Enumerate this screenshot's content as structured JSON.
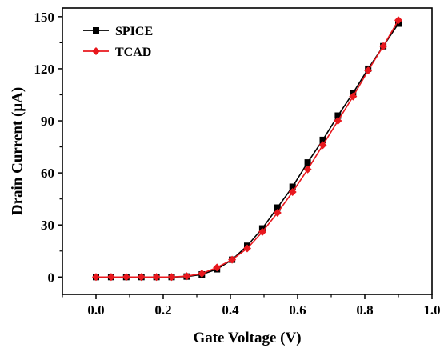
{
  "chart_data": {
    "type": "line",
    "xlabel": "Gate Voltage (V)",
    "ylabel": "Drain Current (μA)",
    "xlim": [
      -0.1,
      1.0
    ],
    "ylim": [
      -10,
      155
    ],
    "xticks": [
      0.0,
      0.2,
      0.4,
      0.6,
      0.8,
      1.0
    ],
    "xtick_labels": [
      "0.0",
      "0.2",
      "0.4",
      "0.6",
      "0.8",
      "1.0"
    ],
    "yticks": [
      0,
      30,
      60,
      90,
      120,
      150
    ],
    "ytick_labels": [
      "0",
      "30",
      "60",
      "90",
      "120",
      "150"
    ],
    "grid": false,
    "legend_position": "top-left",
    "series": [
      {
        "name": "SPICE",
        "color": "#000000",
        "marker": "square",
        "x": [
          0.0,
          0.045,
          0.09,
          0.135,
          0.18,
          0.225,
          0.27,
          0.315,
          0.36,
          0.405,
          0.45,
          0.495,
          0.54,
          0.585,
          0.63,
          0.675,
          0.72,
          0.765,
          0.81,
          0.855,
          0.9
        ],
        "y": [
          0,
          0,
          0,
          0,
          0,
          0,
          0.3,
          1.5,
          4.5,
          10,
          18,
          28,
          40,
          52,
          66,
          79,
          93,
          106,
          120,
          133,
          146
        ]
      },
      {
        "name": "TCAD",
        "color": "#e8181e",
        "marker": "diamond",
        "x": [
          0.0,
          0.045,
          0.09,
          0.135,
          0.18,
          0.225,
          0.27,
          0.315,
          0.36,
          0.405,
          0.45,
          0.495,
          0.54,
          0.585,
          0.63,
          0.675,
          0.72,
          0.765,
          0.81,
          0.855,
          0.9
        ],
        "y": [
          0,
          0,
          0,
          0,
          0,
          0,
          0.5,
          2,
          5.5,
          10,
          16.5,
          26,
          37,
          49,
          62,
          76,
          90,
          104,
          119,
          133,
          148
        ]
      }
    ]
  }
}
